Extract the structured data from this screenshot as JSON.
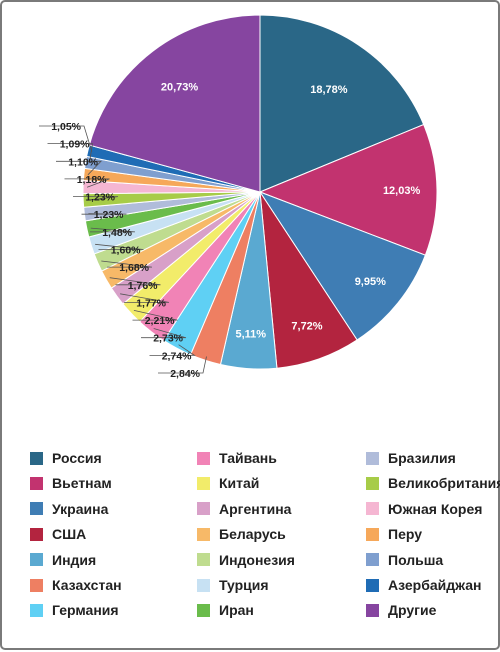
{
  "chart_data": {
    "type": "pie",
    "title": "",
    "start_angle_deg": 0,
    "direction": "clockwise",
    "categories": [
      "Россия",
      "Вьетнам",
      "Украина",
      "США",
      "Индия",
      "Казахстан",
      "Германия",
      "Тайвань",
      "Китай",
      "Аргентина",
      "Беларусь",
      "Индонезия",
      "Турция",
      "Иран",
      "Бразилия",
      "Великобритания",
      "Южная Корея",
      "Перу",
      "Польша",
      "Азербайджан",
      "Другие"
    ],
    "values": [
      18.78,
      12.03,
      9.95,
      7.72,
      5.11,
      2.84,
      2.74,
      2.73,
      2.21,
      1.77,
      1.76,
      1.68,
      1.6,
      1.48,
      1.23,
      1.23,
      1.18,
      1.1,
      1.09,
      1.05,
      20.73
    ],
    "data_labels": [
      "18,78%",
      "12,03%",
      "9,95%",
      "7,72%",
      "5,11%",
      "2,84%",
      "2,74%",
      "2,73%",
      "2,21%",
      "1,77%",
      "1,76%",
      "1,68%",
      "1,60%",
      "1,48%",
      "1,23%",
      "1,23%",
      "1,18%",
      "1,10%",
      "1,09%",
      "1,05%",
      "20,73%"
    ],
    "colors": [
      "#2a6787",
      "#c2336f",
      "#3f7db4",
      "#b3243f",
      "#5aa9d1",
      "#ee7f62",
      "#5fd0f4",
      "#f183b6",
      "#f2ec6a",
      "#d8a0c8",
      "#f7b968",
      "#bfdc8f",
      "#c7e1f3",
      "#6abc4b",
      "#b0bcda",
      "#a7cc48",
      "#f5b6d2",
      "#f6a85a",
      "#7f9fcf",
      "#1f6cb5",
      "#8645a0"
    ],
    "legend": {
      "placement": "bottom",
      "columns": 3
    }
  }
}
